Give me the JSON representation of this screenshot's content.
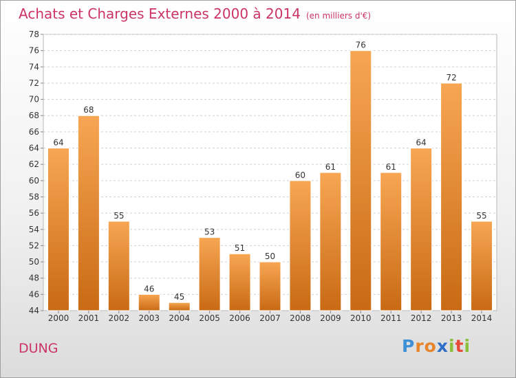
{
  "title": "Achats et Charges Externes 2000 à 2014",
  "subtitle": "(en milliers d'€)",
  "commune": "DUNG",
  "logo": {
    "letters": [
      "P",
      "r",
      "o",
      "x",
      "i",
      "t",
      "i"
    ],
    "colors": [
      "#3d8fd6",
      "#e8842a",
      "#e8842a",
      "#2f6fc7",
      "#8bbf3a",
      "#e84a3a",
      "#8bbf3a"
    ]
  },
  "chart_data": {
    "type": "bar",
    "categories": [
      "2000",
      "2001",
      "2002",
      "2003",
      "2004",
      "2005",
      "2006",
      "2007",
      "2008",
      "2009",
      "2010",
      "2011",
      "2012",
      "2013",
      "2014"
    ],
    "values": [
      64,
      68,
      55,
      46,
      45,
      53,
      51,
      50,
      60,
      61,
      76,
      61,
      64,
      72,
      55
    ],
    "ylim": [
      44,
      78
    ],
    "yticks": [
      44,
      46,
      48,
      50,
      52,
      54,
      56,
      58,
      60,
      62,
      64,
      66,
      68,
      70,
      72,
      74,
      76,
      78
    ],
    "grid": true,
    "bar_color_top": "#f7a653",
    "bar_color_bottom": "#c96a14",
    "title_color": "#cc3366"
  }
}
